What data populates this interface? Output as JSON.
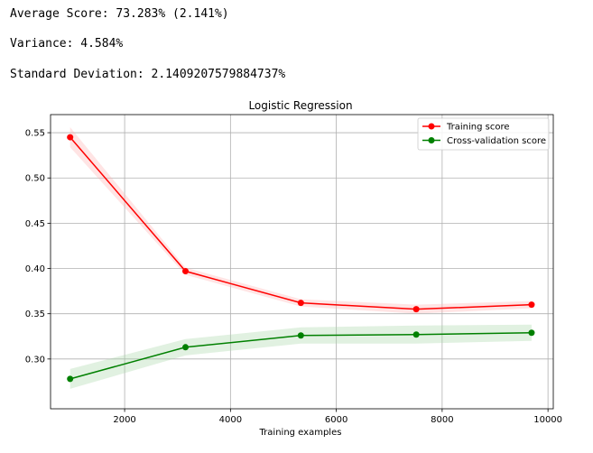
{
  "output": {
    "line1": "Average Score: 73.283% (2.141%)",
    "line2": "Variance: 4.584%",
    "line3": "Standard Deviation: 2.1409207579884737%"
  },
  "chart_data": {
    "type": "line",
    "title": "Logistic Regression",
    "xlabel": "Training examples",
    "ylabel": "",
    "xlim": [
      600,
      10100
    ],
    "ylim": [
      0.245,
      0.57
    ],
    "xticks": [
      2000,
      4000,
      6000,
      8000,
      10000
    ],
    "yticks": [
      0.3,
      0.35,
      0.4,
      0.45,
      0.5,
      0.55
    ],
    "grid": true,
    "legend_position": "top-right",
    "x": [
      970,
      3150,
      5330,
      7510,
      9690
    ],
    "series": [
      {
        "name": "Training score",
        "color": "#ff0000",
        "fill_color": "#ffb3b3",
        "values": [
          0.545,
          0.397,
          0.362,
          0.355,
          0.36
        ],
        "upper": [
          0.556,
          0.401,
          0.366,
          0.36,
          0.364
        ],
        "lower": [
          0.534,
          0.393,
          0.358,
          0.35,
          0.356
        ]
      },
      {
        "name": "Cross-validation score",
        "color": "#008000",
        "fill_color": "#a8d8a8",
        "values": [
          0.278,
          0.313,
          0.326,
          0.327,
          0.329
        ],
        "upper": [
          0.289,
          0.322,
          0.335,
          0.337,
          0.338
        ],
        "lower": [
          0.267,
          0.304,
          0.317,
          0.317,
          0.32
        ]
      }
    ]
  }
}
